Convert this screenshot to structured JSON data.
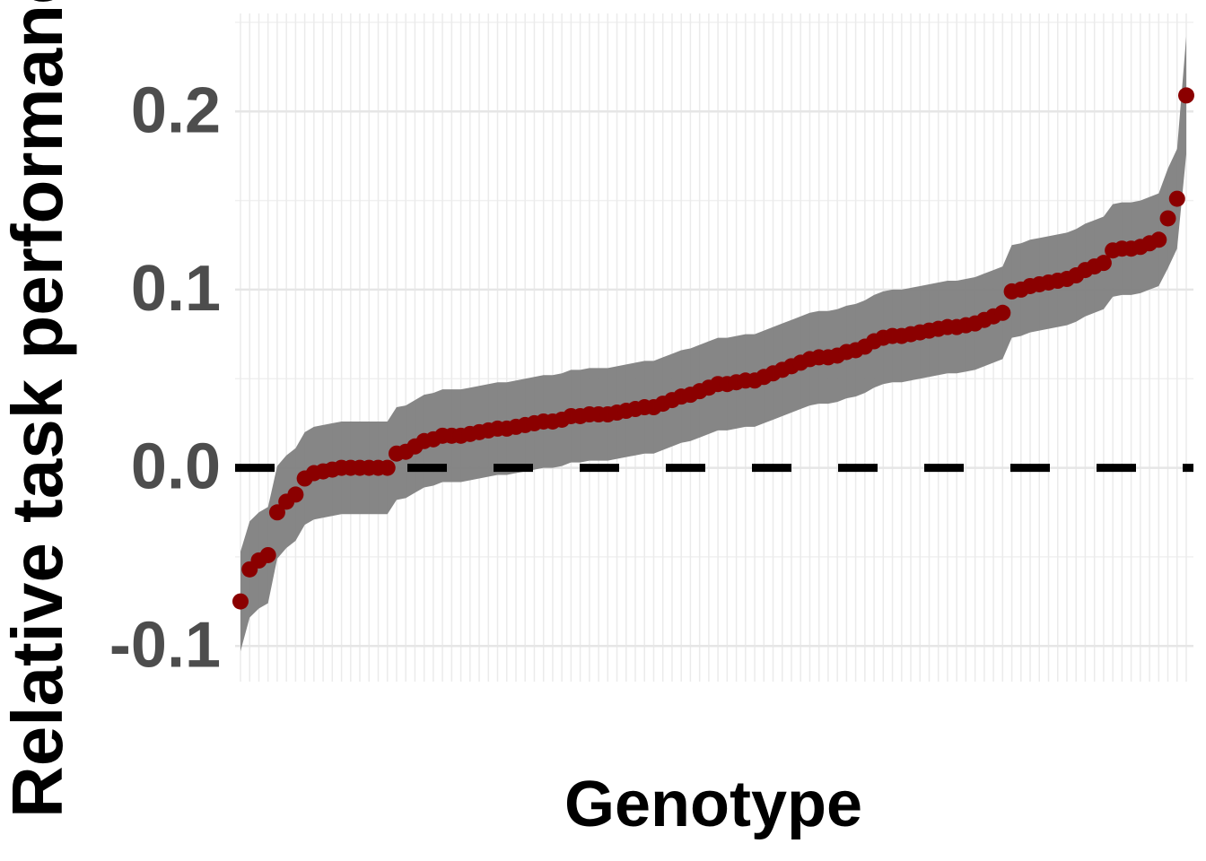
{
  "chart_data": {
    "type": "dot-band",
    "xlabel": "Genotype",
    "ylabel": "Relative task performance",
    "categories": [
      null,
      null,
      null,
      null,
      null,
      null,
      null,
      null,
      null,
      null,
      null,
      null,
      null,
      null,
      null,
      null,
      null,
      null,
      null,
      null,
      null,
      null,
      null,
      null,
      null,
      null,
      null,
      null,
      null,
      null,
      null,
      null,
      null,
      null,
      null,
      null,
      null,
      null,
      null,
      null,
      null,
      null,
      null,
      null,
      null,
      null,
      null,
      null,
      null,
      null,
      null,
      null,
      null,
      null,
      null,
      null,
      null,
      null,
      null,
      null,
      null,
      null,
      null,
      null,
      null,
      null,
      null,
      null,
      null,
      null,
      null,
      null,
      null,
      null,
      null,
      null,
      null,
      null,
      null,
      null,
      null,
      null,
      null,
      null,
      null,
      null,
      null,
      null,
      null,
      null,
      null,
      null,
      null,
      null,
      null,
      null,
      null,
      null,
      null,
      null,
      null,
      null,
      null,
      null
    ],
    "series": [
      {
        "color": "#8b0000",
        "band_color": "#808080",
        "values": [
          -0.075,
          -0.057,
          -0.052,
          -0.049,
          -0.025,
          -0.019,
          -0.015,
          -0.006,
          -0.003,
          -0.002,
          -0.001,
          0,
          0,
          0,
          0,
          0,
          0,
          0.008,
          0.009,
          0.012,
          0.015,
          0.016,
          0.018,
          0.018,
          0.018,
          0.019,
          0.02,
          0.021,
          0.022,
          0.022,
          0.023,
          0.024,
          0.025,
          0.026,
          0.026,
          0.027,
          0.029,
          0.029,
          0.03,
          0.03,
          0.03,
          0.031,
          0.032,
          0.033,
          0.034,
          0.034,
          0.036,
          0.038,
          0.04,
          0.041,
          0.043,
          0.045,
          0.047,
          0.047,
          0.048,
          0.049,
          0.049,
          0.051,
          0.053,
          0.055,
          0.057,
          0.059,
          0.061,
          0.062,
          0.062,
          0.063,
          0.065,
          0.066,
          0.068,
          0.071,
          0.073,
          0.074,
          0.074,
          0.075,
          0.076,
          0.077,
          0.078,
          0.079,
          0.079,
          0.08,
          0.081,
          0.083,
          0.085,
          0.087,
          0.099,
          0.1,
          0.102,
          0.103,
          0.104,
          0.105,
          0.106,
          0.108,
          0.111,
          0.113,
          0.115,
          0.122,
          0.123,
          0.123,
          0.124,
          0.126,
          0.128,
          0.14,
          0.151,
          0.209
        ],
        "errors": [
          0.028,
          0.027,
          0.027,
          0.027,
          0.026,
          0.026,
          0.026,
          0.026,
          0.026,
          0.026,
          0.026,
          0.026,
          0.026,
          0.026,
          0.026,
          0.026,
          0.026,
          0.026,
          0.026,
          0.026,
          0.026,
          0.026,
          0.026,
          0.026,
          0.026,
          0.026,
          0.026,
          0.026,
          0.026,
          0.026,
          0.026,
          0.026,
          0.026,
          0.026,
          0.026,
          0.026,
          0.026,
          0.026,
          0.026,
          0.026,
          0.026,
          0.026,
          0.026,
          0.026,
          0.026,
          0.026,
          0.026,
          0.026,
          0.026,
          0.026,
          0.026,
          0.026,
          0.026,
          0.026,
          0.026,
          0.026,
          0.026,
          0.026,
          0.026,
          0.026,
          0.026,
          0.026,
          0.026,
          0.026,
          0.026,
          0.026,
          0.026,
          0.026,
          0.026,
          0.026,
          0.026,
          0.026,
          0.026,
          0.026,
          0.026,
          0.026,
          0.026,
          0.026,
          0.026,
          0.026,
          0.026,
          0.026,
          0.026,
          0.026,
          0.026,
          0.026,
          0.026,
          0.026,
          0.026,
          0.026,
          0.026,
          0.026,
          0.026,
          0.026,
          0.026,
          0.026,
          0.026,
          0.026,
          0.026,
          0.026,
          0.026,
          0.028,
          0.028,
          0.033
        ]
      }
    ],
    "ylim": [
      -0.12,
      0.255
    ],
    "yticks": [
      -0.1,
      {
        "value": 0,
        "label": "0.0"
      },
      0.1,
      0.2
    ],
    "minor_yticks": [
      -0.05,
      0.05,
      0.15,
      0.25
    ],
    "reference_line": 0,
    "grid": true
  }
}
